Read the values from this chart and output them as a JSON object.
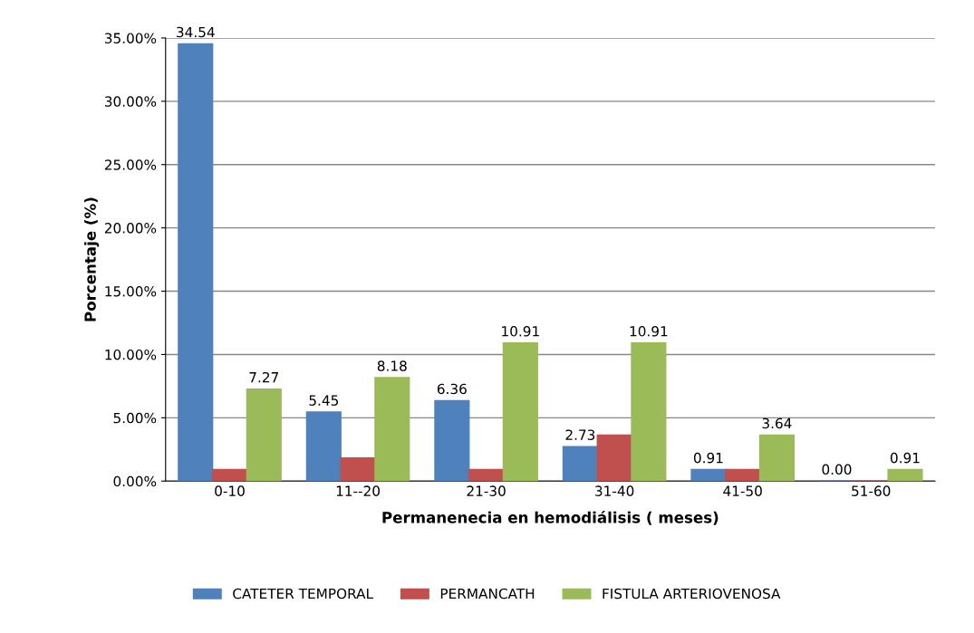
{
  "chart_data": {
    "type": "bar",
    "xlabel": "Permanenecia en hemodiálisis ( meses)",
    "ylabel": "Porcentaje (%)",
    "categories": [
      "0-10",
      "11--20",
      "21-30",
      "31-40",
      "41-50",
      "51-60"
    ],
    "series": [
      {
        "name": "CATETER TEMPORAL",
        "color": "#4f81bd",
        "values": [
          34.54,
          5.45,
          6.36,
          2.73,
          0.91,
          0.0
        ],
        "value_labels": [
          "34.54",
          "5.45",
          "6.36",
          "2.73",
          "0.91",
          "0.00"
        ]
      },
      {
        "name": "PERMANCATH",
        "color": "#c0504d",
        "values": [
          0.91,
          1.82,
          0.91,
          3.64,
          0.91,
          0.0
        ],
        "value_labels": [
          null,
          null,
          null,
          null,
          null,
          null
        ]
      },
      {
        "name": "FISTULA ARTERIOVENOSA",
        "color": "#9bbb59",
        "values": [
          7.27,
          8.18,
          10.91,
          10.91,
          3.64,
          0.91
        ],
        "value_labels": [
          "7.27",
          "8.18",
          "10.91",
          "10.91",
          "3.64",
          "0.91"
        ]
      }
    ],
    "ylim": [
      0,
      35
    ],
    "yticks": [
      {
        "value": 0,
        "label": "0.00%"
      },
      {
        "value": 5,
        "label": "5.00%"
      },
      {
        "value": 10,
        "label": "10.00%"
      },
      {
        "value": 15,
        "label": "15.00%"
      },
      {
        "value": 20,
        "label": "20.00%"
      },
      {
        "value": 25,
        "label": "25.00%"
      },
      {
        "value": 30,
        "label": "30.00%"
      },
      {
        "value": 35,
        "label": "35.00%"
      }
    ],
    "grid": "y",
    "legend": "bottom"
  }
}
